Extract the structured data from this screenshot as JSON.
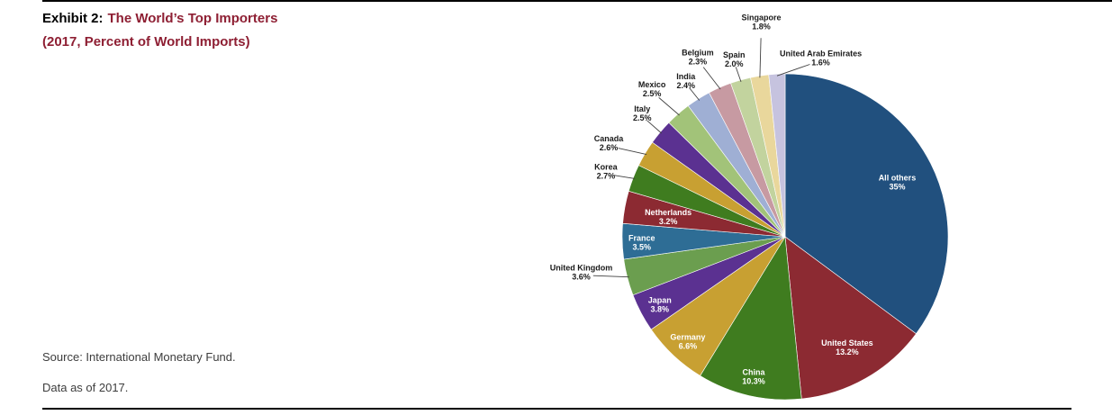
{
  "header": {
    "exhibit_label": "Exhibit 2:",
    "title": "The World’s Top Importers",
    "subtitle": "(2017, Percent of World Imports)",
    "title_color": "#8E1F33"
  },
  "footer": {
    "source": "Source: International Monetary Fund.",
    "data_note": "Data as of 2017."
  },
  "chart_data": {
    "type": "pie",
    "title": "The World’s Top Importers (2017, Percent of World Imports)",
    "start_angle_deg": 0,
    "direction": "clockwise",
    "legend": "none",
    "slices": [
      {
        "label": "All others",
        "value": 35,
        "pct": "35%",
        "color": "#21507E",
        "label_position": "inside"
      },
      {
        "label": "United States",
        "value": 13.2,
        "pct": "13.2%",
        "color": "#8C2A32",
        "label_position": "inside"
      },
      {
        "label": "China",
        "value": 10.3,
        "pct": "10.3%",
        "color": "#3F7C1F",
        "label_position": "inside"
      },
      {
        "label": "Germany",
        "value": 6.6,
        "pct": "6.6%",
        "color": "#C8A032",
        "label_position": "inside"
      },
      {
        "label": "Japan",
        "value": 3.8,
        "pct": "3.8%",
        "color": "#5B3191",
        "label_position": "inside"
      },
      {
        "label": "United Kingdom",
        "value": 3.6,
        "pct": "3.6%",
        "color": "#6B9E4F",
        "label_position": "outside"
      },
      {
        "label": "France",
        "value": 3.5,
        "pct": "3.5%",
        "color": "#2E6D95",
        "label_position": "inside"
      },
      {
        "label": "Netherlands",
        "value": 3.2,
        "pct": "3.2%",
        "color": "#8C2A32",
        "label_position": "inside"
      },
      {
        "label": "Korea",
        "value": 2.7,
        "pct": "2.7%",
        "color": "#3F7C1F",
        "label_position": "outside"
      },
      {
        "label": "Canada",
        "value": 2.6,
        "pct": "2.6%",
        "color": "#C8A032",
        "label_position": "outside"
      },
      {
        "label": "Italy",
        "value": 2.5,
        "pct": "2.5%",
        "color": "#5B3191",
        "label_position": "outside"
      },
      {
        "label": "Mexico",
        "value": 2.5,
        "pct": "2.5%",
        "color": "#A2C379",
        "label_position": "outside"
      },
      {
        "label": "India",
        "value": 2.4,
        "pct": "2.4%",
        "color": "#9FAFD4",
        "label_position": "outside"
      },
      {
        "label": "Belgium",
        "value": 2.3,
        "pct": "2.3%",
        "color": "#C79AA2",
        "label_position": "outside"
      },
      {
        "label": "Spain",
        "value": 2.0,
        "pct": "2.0%",
        "color": "#C2D39E",
        "label_position": "outside"
      },
      {
        "label": "Singapore",
        "value": 1.8,
        "pct": "1.8%",
        "color": "#E9D79C",
        "label_position": "outside"
      },
      {
        "label": "United Arab Emirates",
        "value": 1.6,
        "pct": "1.6%",
        "color": "#C6C3DF",
        "label_position": "outside"
      }
    ]
  }
}
